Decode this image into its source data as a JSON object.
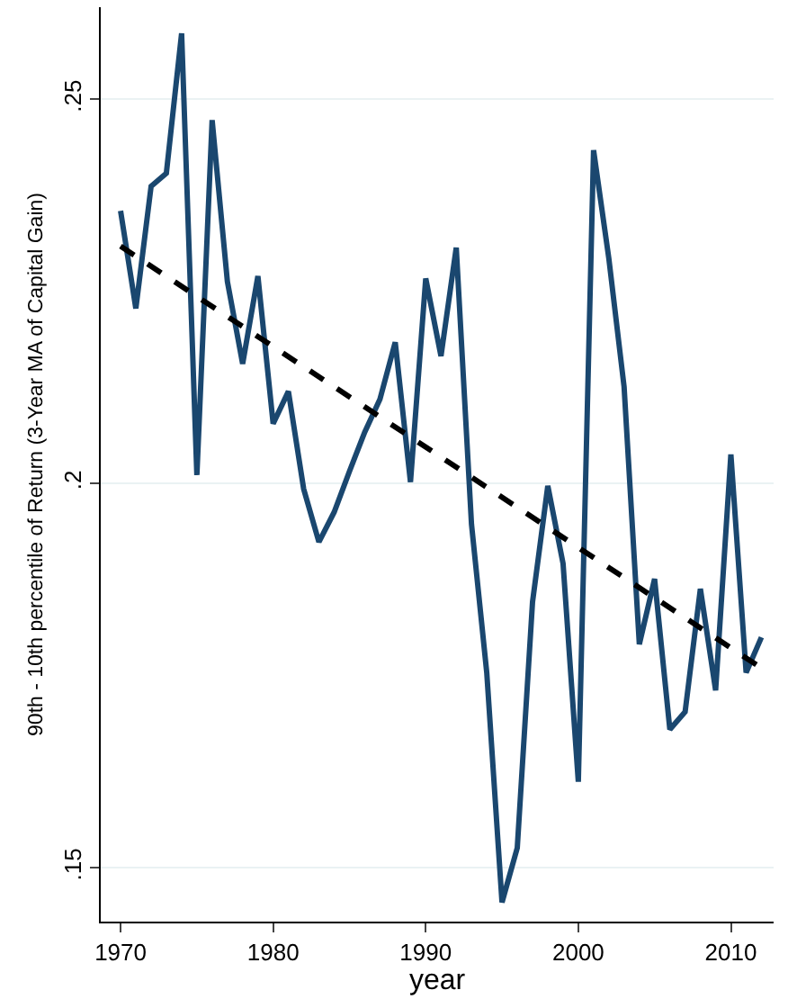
{
  "chart_data": {
    "type": "line",
    "xlabel": "year",
    "ylabel": "90th - 10th percentile of Return (3-Year MA of Capital Gain)",
    "x": [
      1970,
      1971,
      1972,
      1973,
      1974,
      1975,
      1976,
      1977,
      1978,
      1979,
      1980,
      1981,
      1982,
      1983,
      1984,
      1985,
      1986,
      1987,
      1988,
      1989,
      1990,
      1991,
      1992,
      1993,
      1994,
      1995,
      1996,
      1997,
      1998,
      1999,
      2000,
      2001,
      2002,
      2003,
      2004,
      2005,
      2006,
      2007,
      2008,
      2009,
      2010,
      2011,
      2012
    ],
    "series": [
      {
        "color": "#1a476f",
        "line_style": "solid",
        "values": [
          0.2355,
          0.2228,
          0.2387,
          0.2404,
          0.2586,
          0.2011,
          0.2473,
          0.2263,
          0.2156,
          0.227,
          0.2078,
          0.212,
          0.1993,
          0.1924,
          0.1963,
          0.2016,
          0.2067,
          0.211,
          0.2184,
          0.2002,
          0.2267,
          0.2166,
          0.2307,
          0.1947,
          0.1754,
          0.1455,
          0.1526,
          0.1846,
          0.1997,
          0.1896,
          0.1612,
          0.2434,
          0.2293,
          0.2126,
          0.1791,
          0.1876,
          0.168,
          0.1703,
          0.1863,
          0.1731,
          0.2038,
          0.1754,
          0.18
        ]
      },
      {
        "type": "line",
        "color": "#000000",
        "line_style": "dashed",
        "x": [
          1970,
          2012
        ],
        "values": [
          0.2309,
          0.176
        ]
      }
    ],
    "xlim": [
      1968.7,
      2012.8
    ],
    "ylim": [
      0.143,
      0.262
    ],
    "xticks": [
      1970,
      1980,
      1990,
      2000,
      2010
    ],
    "yticks": [
      {
        "value": 0.15,
        "label": ".15"
      },
      {
        "value": 0.2,
        "label": ".2"
      },
      {
        "value": 0.25,
        "label": ".25"
      }
    ],
    "grid": "y",
    "marker": "none"
  }
}
